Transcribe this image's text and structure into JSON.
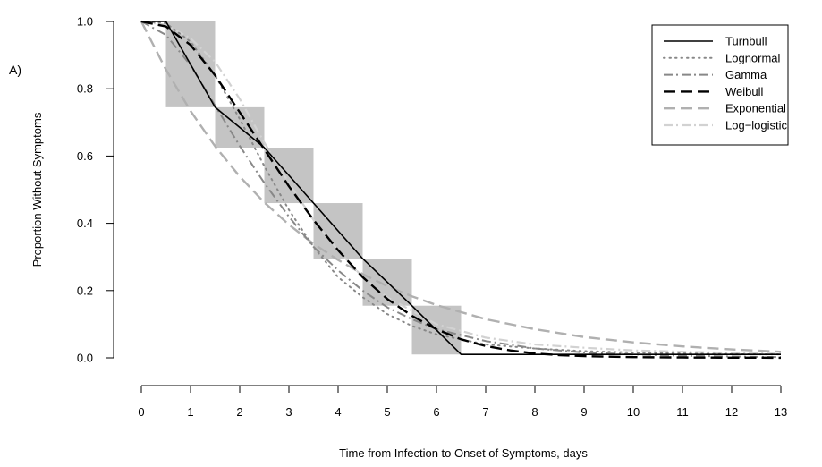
{
  "panel_label": "A)",
  "chart_data": {
    "type": "line",
    "title": "",
    "xlabel": "Time from Infection to Onset of Symptoms, days",
    "ylabel": "Proportion Without Symptoms",
    "xlim": [
      0,
      13
    ],
    "ylim": [
      0,
      1
    ],
    "x_ticks": [
      0,
      1,
      2,
      3,
      4,
      5,
      6,
      7,
      8,
      9,
      10,
      11,
      12,
      13
    ],
    "y_ticks": [
      0.0,
      0.2,
      0.4,
      0.6,
      0.8,
      1.0
    ],
    "y_tick_labels": [
      "0.0",
      "0.2",
      "0.4",
      "0.6",
      "0.8",
      "1.0"
    ],
    "grid": false,
    "legend_position": "top-right",
    "shaded_boxes": [
      {
        "x": [
          0.5,
          1.5
        ],
        "y": [
          0.745,
          1.0
        ]
      },
      {
        "x": [
          1.5,
          2.5
        ],
        "y": [
          0.625,
          0.745
        ]
      },
      {
        "x": [
          2.5,
          3.5
        ],
        "y": [
          0.46,
          0.625
        ]
      },
      {
        "x": [
          3.5,
          4.5
        ],
        "y": [
          0.295,
          0.46
        ]
      },
      {
        "x": [
          4.5,
          5.5
        ],
        "y": [
          0.155,
          0.295
        ]
      },
      {
        "x": [
          5.5,
          6.5
        ],
        "y": [
          0.01,
          0.155
        ]
      }
    ],
    "shaded_color": "#c4c4c4",
    "series": [
      {
        "name": "Turnbull",
        "color": "#000000",
        "dash": "solid",
        "width": 1.6,
        "x": [
          0,
          0.5,
          1.5,
          2.5,
          3.5,
          4.5,
          5.5,
          6.5,
          13
        ],
        "y": [
          1.0,
          1.0,
          0.745,
          0.625,
          0.46,
          0.295,
          0.155,
          0.01,
          0.01
        ]
      },
      {
        "name": "Lognormal",
        "color": "#888888",
        "dash": "dotted",
        "width": 2,
        "x": [
          0,
          0.5,
          1,
          1.5,
          2,
          2.5,
          3,
          3.5,
          4,
          4.5,
          5,
          5.5,
          6,
          7,
          8,
          9,
          10,
          11,
          12,
          13
        ],
        "y": [
          1.0,
          0.995,
          0.94,
          0.84,
          0.71,
          0.57,
          0.44,
          0.33,
          0.24,
          0.18,
          0.13,
          0.095,
          0.07,
          0.04,
          0.028,
          0.02,
          0.016,
          0.013,
          0.011,
          0.01
        ]
      },
      {
        "name": "Gamma",
        "color": "#888888",
        "dash": "dashdot",
        "width": 2,
        "x": [
          0,
          0.5,
          1,
          1.5,
          2,
          2.5,
          3,
          3.5,
          4,
          4.5,
          5,
          5.5,
          6,
          7,
          8,
          9,
          10,
          11,
          12,
          13
        ],
        "y": [
          1.0,
          0.96,
          0.87,
          0.75,
          0.63,
          0.52,
          0.42,
          0.33,
          0.26,
          0.2,
          0.15,
          0.115,
          0.085,
          0.05,
          0.028,
          0.016,
          0.01,
          0.006,
          0.004,
          0.002
        ]
      },
      {
        "name": "Weibull",
        "color": "#000000",
        "dash": "longdash",
        "width": 2.4,
        "x": [
          0,
          0.5,
          1,
          1.5,
          2,
          2.5,
          3,
          3.5,
          4,
          4.5,
          5,
          5.5,
          6,
          6.5,
          7,
          7.5,
          8,
          8.5,
          9,
          10,
          11,
          12,
          13
        ],
        "y": [
          1.0,
          0.985,
          0.93,
          0.84,
          0.73,
          0.62,
          0.51,
          0.41,
          0.32,
          0.24,
          0.175,
          0.125,
          0.085,
          0.055,
          0.035,
          0.022,
          0.013,
          0.008,
          0.005,
          0.002,
          0.001,
          0.0005,
          0.0002
        ]
      },
      {
        "name": "Exponential",
        "color": "#b0b0b0",
        "dash": "longdash",
        "width": 2.4,
        "x": [
          0,
          0.5,
          1,
          1.5,
          2,
          2.5,
          3,
          3.5,
          4,
          4.5,
          5,
          5.5,
          6,
          7,
          8,
          9,
          10,
          11,
          12,
          13
        ],
        "y": [
          1.0,
          0.857,
          0.734,
          0.629,
          0.539,
          0.462,
          0.396,
          0.339,
          0.291,
          0.249,
          0.213,
          0.183,
          0.157,
          0.115,
          0.085,
          0.062,
          0.046,
          0.034,
          0.025,
          0.018
        ]
      },
      {
        "name": "Log−logistic",
        "color": "#d2d2d2",
        "dash": "dashdot",
        "width": 2.2,
        "x": [
          0,
          0.5,
          1,
          1.5,
          2,
          2.5,
          3,
          3.5,
          4,
          4.5,
          5,
          5.5,
          6,
          7,
          8,
          9,
          10,
          11,
          12,
          13
        ],
        "y": [
          1.0,
          0.99,
          0.95,
          0.88,
          0.77,
          0.64,
          0.52,
          0.41,
          0.32,
          0.24,
          0.18,
          0.14,
          0.1,
          0.06,
          0.04,
          0.03,
          0.022,
          0.018,
          0.015,
          0.012
        ]
      }
    ]
  }
}
